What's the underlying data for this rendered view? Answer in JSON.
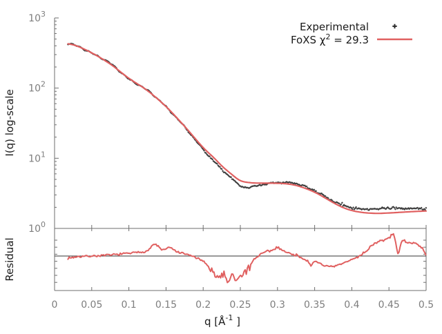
{
  "figure": {
    "background": "#ffffff",
    "axis_color": "#6e6e6e",
    "tick_label_color": "#7d7d7d",
    "text_color": "#1a1a1a",
    "reference_line_color": "#333333"
  },
  "legend": {
    "experimental_label": "Experimental",
    "fit_label_prefix": "FoXS χ",
    "fit_label_sup": "2",
    "fit_label_suffix": " = 29.3",
    "experimental_color": "#2e2e2e",
    "fit_color": "#e06060"
  },
  "axes": {
    "ylabel_top": "I(q) log-scale",
    "ylabel_bottom": "Residual",
    "xlabel_prefix": "q [Å",
    "xlabel_sup": "-1",
    "xlabel_suffix": " ]"
  },
  "chart_data": {
    "type": "line",
    "title": "",
    "xlabel": "q [Å^-1]",
    "x_range": [
      0,
      0.5
    ],
    "x_ticks": [
      0,
      0.05,
      0.1,
      0.15,
      0.2,
      0.25,
      0.3,
      0.35,
      0.4,
      0.45,
      0.5
    ],
    "x_tick_labels": [
      "0",
      "0.05",
      "0.1",
      "0.15",
      "0.2",
      "0.25",
      "0.3",
      "0.35",
      "0.4",
      "0.45",
      "0.5"
    ],
    "top_panel": {
      "ylabel": "I(q) log-scale",
      "y_scale": "log",
      "y_range": [
        1,
        1000
      ],
      "y_tick_exponents": [
        0,
        1,
        2,
        3
      ],
      "series": [
        {
          "name": "Experimental",
          "style": "points",
          "color": "#2e2e2e",
          "points": [
            [
              0.018,
              430
            ],
            [
              0.03,
              400
            ],
            [
              0.05,
              315
            ],
            [
              0.075,
              225
            ],
            [
              0.1,
              135
            ],
            [
              0.125,
              93
            ],
            [
              0.15,
              54
            ],
            [
              0.175,
              28
            ],
            [
              0.2,
              13.2
            ],
            [
              0.215,
              9.0
            ],
            [
              0.225,
              6.9
            ],
            [
              0.2375,
              5.3
            ],
            [
              0.25,
              4.05
            ],
            [
              0.2625,
              3.85
            ],
            [
              0.275,
              4.1
            ],
            [
              0.2875,
              4.35
            ],
            [
              0.3,
              4.5
            ],
            [
              0.3125,
              4.5
            ],
            [
              0.325,
              4.35
            ],
            [
              0.3375,
              3.95
            ],
            [
              0.35,
              3.45
            ],
            [
              0.3625,
              2.9
            ],
            [
              0.375,
              2.45
            ],
            [
              0.3875,
              2.15
            ],
            [
              0.4,
              1.97
            ],
            [
              0.4125,
              1.89
            ],
            [
              0.425,
              1.86
            ],
            [
              0.4375,
              1.92
            ],
            [
              0.45,
              1.97
            ],
            [
              0.4625,
              1.92
            ],
            [
              0.475,
              1.91
            ],
            [
              0.4875,
              1.93
            ],
            [
              0.5,
              1.9
            ]
          ]
        },
        {
          "name": "FoXS",
          "style": "line",
          "chi2": 29.3,
          "color": "#e06060",
          "points": [
            [
              0.018,
              428
            ],
            [
              0.03,
              398
            ],
            [
              0.05,
              318
            ],
            [
              0.075,
              220
            ],
            [
              0.1,
              138
            ],
            [
              0.125,
              92
            ],
            [
              0.15,
              54.5
            ],
            [
              0.175,
              28.5
            ],
            [
              0.2,
              14.2
            ],
            [
              0.215,
              10.0
            ],
            [
              0.225,
              7.8
            ],
            [
              0.2375,
              6.0
            ],
            [
              0.25,
              4.8
            ],
            [
              0.2625,
              4.5
            ],
            [
              0.275,
              4.42
            ],
            [
              0.2875,
              4.42
            ],
            [
              0.3,
              4.4
            ],
            [
              0.3125,
              4.32
            ],
            [
              0.325,
              4.1
            ],
            [
              0.3375,
              3.72
            ],
            [
              0.35,
              3.28
            ],
            [
              0.3625,
              2.78
            ],
            [
              0.375,
              2.33
            ],
            [
              0.3875,
              2.0
            ],
            [
              0.4,
              1.8
            ],
            [
              0.4125,
              1.7
            ],
            [
              0.425,
              1.65
            ],
            [
              0.4375,
              1.64
            ],
            [
              0.45,
              1.66
            ],
            [
              0.4625,
              1.69
            ],
            [
              0.475,
              1.72
            ],
            [
              0.4875,
              1.75
            ],
            [
              0.5,
              1.77
            ]
          ]
        }
      ]
    },
    "residual_panel": {
      "ylabel": "Residual",
      "y_scale": "linear",
      "reference_line": 1,
      "series": [
        {
          "name": "Residual",
          "style": "line",
          "color": "#e06060",
          "points": [
            [
              0.018,
              0.97
            ],
            [
              0.03,
              0.99
            ],
            [
              0.05,
              1.0
            ],
            [
              0.07,
              1.01
            ],
            [
              0.09,
              1.03
            ],
            [
              0.11,
              1.05
            ],
            [
              0.125,
              1.08
            ],
            [
              0.135,
              1.17
            ],
            [
              0.145,
              1.09
            ],
            [
              0.155,
              1.12
            ],
            [
              0.165,
              1.06
            ],
            [
              0.175,
              1.03
            ],
            [
              0.185,
              1.0
            ],
            [
              0.195,
              0.95
            ],
            [
              0.205,
              0.88
            ],
            [
              0.215,
              0.78
            ],
            [
              0.222,
              0.7
            ],
            [
              0.228,
              0.8
            ],
            [
              0.233,
              0.64
            ],
            [
              0.238,
              0.75
            ],
            [
              0.243,
              0.66
            ],
            [
              0.25,
              0.72
            ],
            [
              0.258,
              0.82
            ],
            [
              0.266,
              0.92
            ],
            [
              0.274,
              1.0
            ],
            [
              0.285,
              1.06
            ],
            [
              0.295,
              1.09
            ],
            [
              0.3,
              1.13
            ],
            [
              0.31,
              1.06
            ],
            [
              0.32,
              1.03
            ],
            [
              0.33,
              0.99
            ],
            [
              0.34,
              0.93
            ],
            [
              0.345,
              0.85
            ],
            [
              0.35,
              0.92
            ],
            [
              0.36,
              0.88
            ],
            [
              0.37,
              0.84
            ],
            [
              0.38,
              0.86
            ],
            [
              0.39,
              0.9
            ],
            [
              0.4,
              0.95
            ],
            [
              0.41,
              1.0
            ],
            [
              0.42,
              1.08
            ],
            [
              0.43,
              1.18
            ],
            [
              0.44,
              1.22
            ],
            [
              0.45,
              1.26
            ],
            [
              0.457,
              1.3
            ],
            [
              0.462,
              1.03
            ],
            [
              0.467,
              1.22
            ],
            [
              0.475,
              1.18
            ],
            [
              0.483,
              1.2
            ],
            [
              0.49,
              1.15
            ],
            [
              0.497,
              1.08
            ],
            [
              0.5,
              1.02
            ]
          ]
        }
      ]
    }
  }
}
